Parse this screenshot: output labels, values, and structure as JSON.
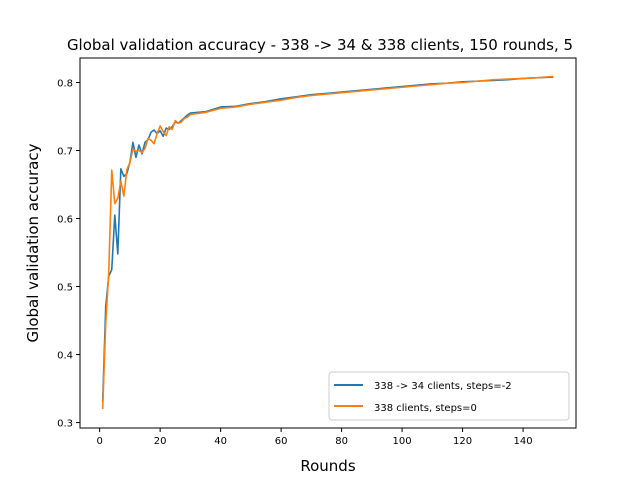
{
  "chart_data": {
    "type": "line",
    "title": "Global validation accuracy - 338 -> 34 & 338 clients, 150 rounds, 5",
    "xlabel": "Rounds",
    "ylabel": "Global validation accuracy",
    "xlim": [
      -6.5,
      157.5
    ],
    "ylim": [
      0.292,
      0.836
    ],
    "xticks": [
      0,
      20,
      40,
      60,
      80,
      100,
      120,
      140
    ],
    "yticks": [
      0.3,
      0.4,
      0.5,
      0.6,
      0.7,
      0.8
    ],
    "legend_position": "lower-right",
    "grid": false,
    "colors": {
      "series1": "#1f77b4",
      "series2": "#ff7f0e"
    },
    "series": [
      {
        "name": "338 -> 34 clients, steps=-2",
        "x": [
          1,
          2,
          3,
          4,
          5,
          6,
          7,
          8,
          9,
          10,
          11,
          12,
          13,
          14,
          15,
          16,
          17,
          18,
          19,
          20,
          21,
          22,
          23,
          24,
          25,
          26,
          27,
          28,
          29,
          30,
          35,
          40,
          45,
          50,
          55,
          60,
          65,
          70,
          75,
          80,
          85,
          90,
          95,
          100,
          105,
          110,
          115,
          120,
          125,
          130,
          135,
          140,
          145,
          150
        ],
        "y": [
          0.33,
          0.47,
          0.515,
          0.525,
          0.605,
          0.548,
          0.673,
          0.662,
          0.666,
          0.683,
          0.712,
          0.69,
          0.708,
          0.695,
          0.712,
          0.716,
          0.727,
          0.73,
          0.725,
          0.729,
          0.721,
          0.733,
          0.731,
          0.735,
          0.742,
          0.74,
          0.744,
          0.748,
          0.752,
          0.755,
          0.757,
          0.764,
          0.765,
          0.769,
          0.772,
          0.776,
          0.779,
          0.782,
          0.784,
          0.786,
          0.788,
          0.79,
          0.792,
          0.794,
          0.796,
          0.798,
          0.799,
          0.801,
          0.802,
          0.803,
          0.804,
          0.806,
          0.807,
          0.808
        ]
      },
      {
        "name": "338 clients, steps=0",
        "x": [
          1,
          2,
          3,
          4,
          5,
          6,
          7,
          8,
          9,
          10,
          11,
          12,
          13,
          14,
          15,
          16,
          17,
          18,
          19,
          20,
          21,
          22,
          23,
          24,
          25,
          26,
          27,
          28,
          29,
          30,
          35,
          40,
          45,
          50,
          55,
          60,
          65,
          70,
          75,
          80,
          85,
          90,
          95,
          100,
          105,
          110,
          115,
          120,
          125,
          130,
          135,
          140,
          145,
          150
        ],
        "y": [
          0.32,
          0.445,
          0.52,
          0.671,
          0.622,
          0.63,
          0.655,
          0.633,
          0.672,
          0.682,
          0.702,
          0.699,
          0.7,
          0.697,
          0.703,
          0.718,
          0.715,
          0.71,
          0.725,
          0.736,
          0.728,
          0.722,
          0.735,
          0.731,
          0.744,
          0.74,
          0.742,
          0.747,
          0.749,
          0.753,
          0.756,
          0.762,
          0.764,
          0.768,
          0.771,
          0.774,
          0.778,
          0.781,
          0.783,
          0.785,
          0.787,
          0.789,
          0.791,
          0.793,
          0.795,
          0.797,
          0.799,
          0.8,
          0.802,
          0.804,
          0.805,
          0.806,
          0.807,
          0.809
        ]
      }
    ]
  }
}
